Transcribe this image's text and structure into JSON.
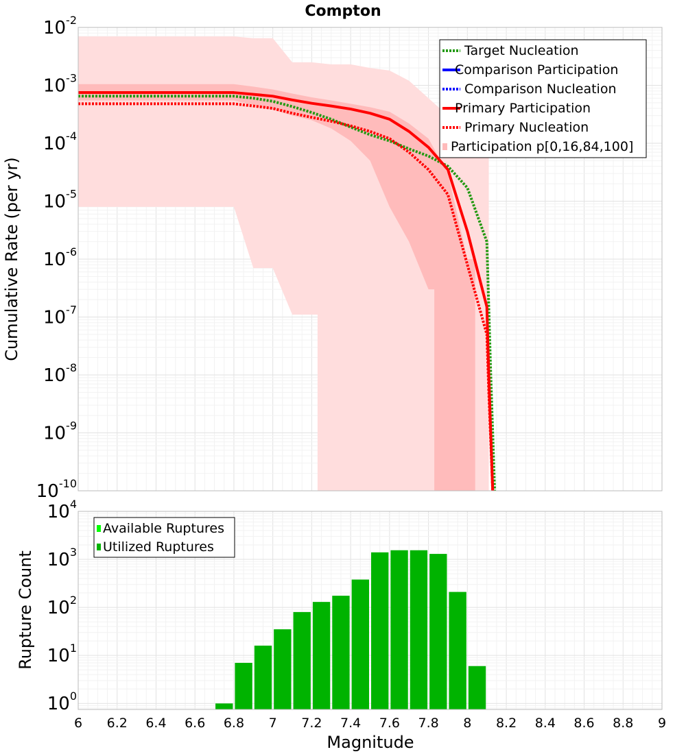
{
  "chart_data": [
    {
      "type": "line",
      "title": "Compton",
      "xlabel": "",
      "ylabel": "Cumulative Rate (per yr)",
      "xlim": [
        6,
        9
      ],
      "ylim": [
        1e-10,
        0.01
      ],
      "yscale": "log",
      "grid": true,
      "legend_placement": "top-right",
      "ytick_exponents": [
        -2,
        -3,
        -4,
        -5,
        -6,
        -7,
        -8,
        -9,
        -10
      ],
      "ytick_base": "10",
      "band_outer": {
        "x": [
          6.0,
          6.8,
          6.9,
          7.0,
          7.1,
          7.2,
          7.3,
          7.4,
          7.5,
          7.6,
          7.7,
          7.8,
          7.9,
          8.0,
          8.1
        ],
        "upper": [
          0.007,
          0.007,
          0.0065,
          0.0065,
          0.0025,
          0.0025,
          0.0023,
          0.0023,
          0.002,
          0.0018,
          0.0012,
          0.0006,
          0.0003,
          0.00015,
          8e-05
        ],
        "lower": [
          8e-06,
          8e-06,
          7e-07,
          7e-07,
          1.1e-07,
          1.1e-07,
          1e-10,
          1e-10,
          1e-10,
          1e-10,
          1e-10,
          1e-10,
          1e-10,
          1e-10,
          1e-10
        ],
        "lower_cutoff_x": 7.23,
        "upper_cutoff_x": 8.11
      },
      "band_inner": {
        "x": [
          6.0,
          6.8,
          6.9,
          7.0,
          7.1,
          7.2,
          7.3,
          7.4,
          7.5,
          7.6,
          7.7,
          7.8,
          7.9,
          8.0
        ],
        "upper": [
          0.00105,
          0.00105,
          0.00095,
          0.00085,
          0.00072,
          0.00062,
          0.00055,
          0.00048,
          0.00042,
          0.00035,
          0.00022,
          0.00012,
          3e-05,
          1e-06
        ],
        "lower": [
          0.00055,
          0.00055,
          0.00045,
          0.00038,
          0.0003,
          0.00025,
          0.00018,
          0.00011,
          5e-05,
          8e-06,
          2e-06,
          3e-07,
          1e-10,
          1e-10
        ],
        "lower_cutoff_x": 7.83,
        "upper_cutoff_x": 8.04
      },
      "series": [
        {
          "name": "Target Nucleation",
          "color": "#229911",
          "dash": "dotted",
          "x": [
            6.0,
            6.8,
            6.9,
            7.0,
            7.1,
            7.2,
            7.3,
            7.4,
            7.5,
            7.6,
            7.7,
            7.8,
            7.9,
            8.0,
            8.1,
            8.12,
            8.14
          ],
          "y": [
            0.00065,
            0.00065,
            0.0006,
            0.00053,
            0.00043,
            0.00034,
            0.00026,
            0.00019,
            0.00014,
            0.00011,
            8e-05,
            6e-05,
            4e-05,
            1.7e-05,
            2e-06,
            1e-08,
            1e-10
          ]
        },
        {
          "name": "Comparison Participation",
          "color": "#0000ff",
          "dash": "solid",
          "x": [],
          "y": []
        },
        {
          "name": "Comparison Nucleation",
          "color": "#0000ff",
          "dash": "dotted",
          "x": [],
          "y": []
        },
        {
          "name": "Primary Participation",
          "color": "#ff0000",
          "dash": "solid",
          "x": [
            6.0,
            6.8,
            6.9,
            7.0,
            7.1,
            7.2,
            7.3,
            7.4,
            7.5,
            7.6,
            7.7,
            7.8,
            7.9,
            8.0,
            8.1,
            8.11,
            8.13
          ],
          "y": [
            0.00075,
            0.00075,
            0.0007,
            0.00065,
            0.00056,
            0.00049,
            0.00044,
            0.00039,
            0.00033,
            0.00026,
            0.00016,
            8.5e-05,
            3.5e-05,
            3e-06,
            1.5e-07,
            1e-08,
            1e-10
          ]
        },
        {
          "name": "Primary Nucleation",
          "color": "#ff0000",
          "dash": "dotted",
          "x": [
            6.0,
            6.8,
            6.9,
            7.0,
            7.1,
            7.2,
            7.3,
            7.4,
            7.5,
            7.6,
            7.7,
            7.8,
            7.9,
            8.0,
            8.1,
            8.11,
            8.13
          ],
          "y": [
            0.00048,
            0.00048,
            0.00044,
            0.0004,
            0.00033,
            0.00028,
            0.00024,
            0.0002,
            0.00016,
            0.00012,
            7e-05,
            3.5e-05,
            1.3e-05,
            8e-07,
            5e-08,
            5e-09,
            1e-10
          ]
        }
      ],
      "band_legend": {
        "name": "Participation p[0,16,84,100]",
        "color": "#ffbbbb"
      }
    },
    {
      "type": "bar",
      "title": "",
      "xlabel": "Magnitude",
      "ylabel": "Rupture Count",
      "xlim": [
        6,
        9
      ],
      "ylim": [
        0.75,
        10000
      ],
      "yscale": "log",
      "grid": true,
      "legend_placement": "top-left",
      "ytick_exponents": [
        4,
        3,
        2,
        1,
        0
      ],
      "ytick_base": "10",
      "xticks": [
        "6",
        "6.2",
        "6.4",
        "6.6",
        "6.8",
        "7",
        "7.2",
        "7.4",
        "7.6",
        "7.8",
        "8",
        "8.2",
        "8.4",
        "8.6",
        "8.8",
        "9"
      ],
      "bin_width": 0.1,
      "series": [
        {
          "name": "Available Ruptures",
          "color": "#00ff00",
          "x": [],
          "values": []
        },
        {
          "name": "Utilized Ruptures",
          "color": "#00b300",
          "x": [
            6.75,
            6.85,
            6.95,
            7.05,
            7.15,
            7.25,
            7.35,
            7.45,
            7.55,
            7.65,
            7.75,
            7.85,
            7.95,
            8.05
          ],
          "values": [
            1,
            7,
            16,
            35,
            80,
            130,
            175,
            380,
            1400,
            1550,
            1550,
            1300,
            210,
            6
          ]
        }
      ]
    }
  ]
}
